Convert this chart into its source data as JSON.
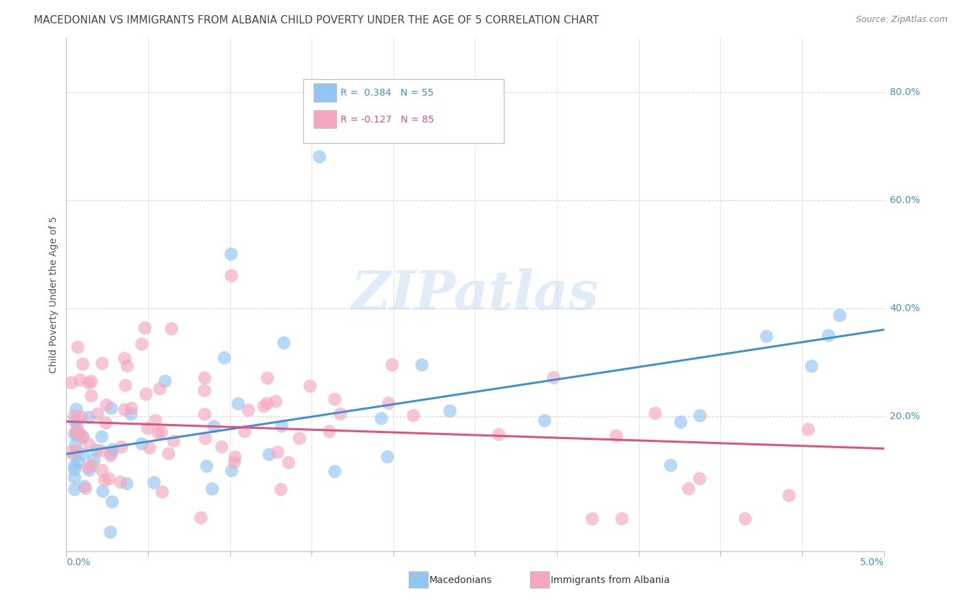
{
  "title": "MACEDONIAN VS IMMIGRANTS FROM ALBANIA CHILD POVERTY UNDER THE AGE OF 5 CORRELATION CHART",
  "source": "Source: ZipAtlas.com",
  "ylabel": "Child Poverty Under the Age of 5",
  "xlim": [
    0.0,
    0.05
  ],
  "ylim": [
    -0.05,
    0.9
  ],
  "ytick_vals": [
    0.2,
    0.4,
    0.6,
    0.8
  ],
  "ytick_labels": [
    "20.0%",
    "40.0%",
    "60.0%",
    "80.0%"
  ],
  "legend_r1": "R =  0.384   N = 55",
  "legend_r2": "R = -0.127   N = 85",
  "watermark": "ZIPatlas",
  "series1_color": "#92C5F0",
  "series2_color": "#F4A8C0",
  "series1_line_color": "#4090D0",
  "series2_line_color": "#E05080",
  "background_color": "#ffffff",
  "grid_color": "#d8d8d8",
  "right_label_color": "#4090D0",
  "title_color": "#444444",
  "source_color": "#888888"
}
